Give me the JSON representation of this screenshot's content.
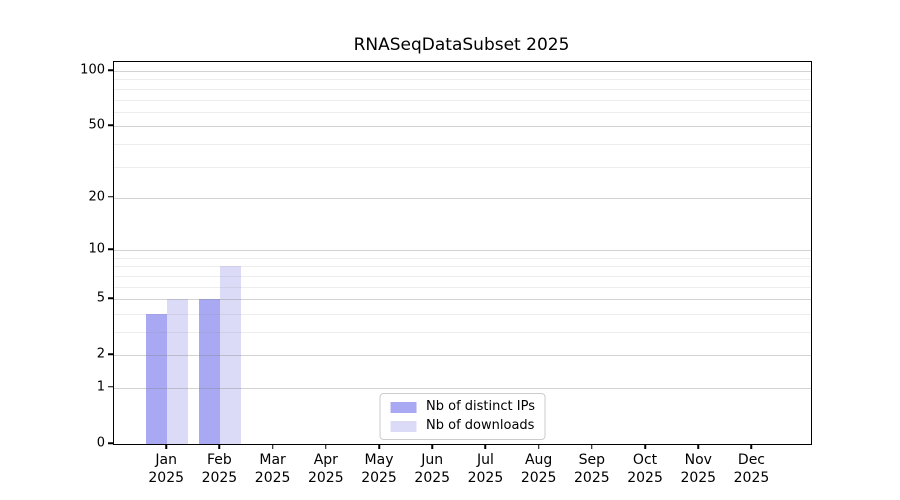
{
  "chart_data": {
    "type": "bar",
    "title": "RNASeqDataSubset 2025",
    "categories": [
      "Jan",
      "Feb",
      "Mar",
      "Apr",
      "May",
      "Jun",
      "Jul",
      "Aug",
      "Sep",
      "Oct",
      "Nov",
      "Dec"
    ],
    "x_year_label": "2025",
    "series": [
      {
        "id": "distinct-ips",
        "name": "Nb of distinct IPs",
        "color": "#a9a9f3",
        "values": [
          4,
          5,
          0,
          0,
          0,
          0,
          0,
          0,
          0,
          0,
          0,
          0
        ]
      },
      {
        "id": "downloads",
        "name": "Nb of downloads",
        "color": "#dbdbf8",
        "values": [
          5,
          8,
          0,
          0,
          0,
          0,
          0,
          0,
          0,
          0,
          0,
          0
        ]
      }
    ],
    "y_scale": "log1p",
    "y_ticks": [
      0,
      1,
      2,
      5,
      10,
      20,
      50,
      100
    ],
    "y_minor_ticks": [
      3,
      4,
      6,
      7,
      8,
      9,
      30,
      40,
      60,
      70,
      80,
      90
    ],
    "ylim": [
      0,
      112
    ],
    "grid": true,
    "legend_position": "lower center",
    "colors": {
      "axis": "#000000",
      "grid_major": "#d6d6d6",
      "grid_minor": "#ebebeb",
      "background": "#ffffff"
    }
  }
}
